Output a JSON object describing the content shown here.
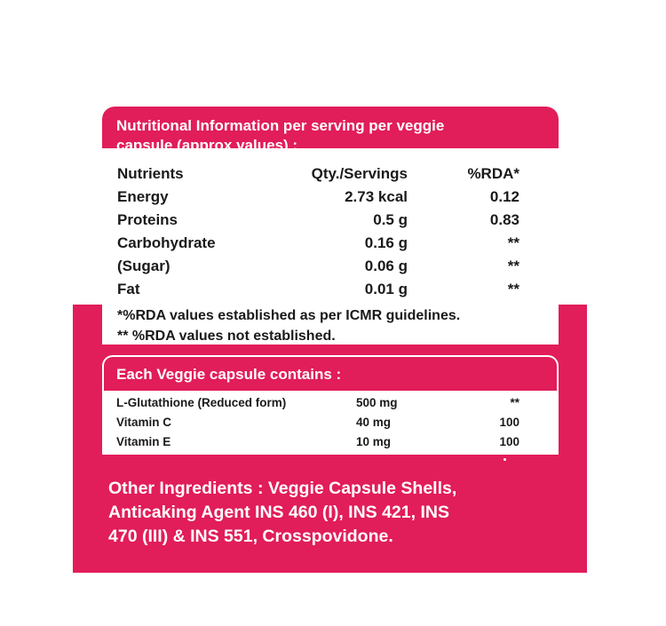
{
  "header": {
    "line1": "Nutritional Information per serving per veggie",
    "line2": "capsule (approx values) :"
  },
  "columns": {
    "name": "Nutrients",
    "qty": "Qty./Servings",
    "rda": "%RDA*"
  },
  "nutrients": [
    {
      "name": "Energy",
      "qty": "2.73 kcal",
      "rda": "0.12"
    },
    {
      "name": "Proteins",
      "qty": "0.5 g",
      "rda": "0.83"
    },
    {
      "name": "Carbohydrate",
      "qty": "0.16 g",
      "rda": "**"
    },
    {
      "name": "(Sugar)",
      "qty": "0.06 g",
      "rda": "**"
    },
    {
      "name": "Fat",
      "qty": "0.01 g",
      "rda": "**"
    }
  ],
  "notes": {
    "n1": "*%RDA values established as per ICMR guidelines.",
    "n2": "** %RDA values not established."
  },
  "capsule": {
    "title": "Each Veggie capsule contains :",
    "rows": [
      {
        "name": "L-Glutathione (Reduced form)",
        "qty": "500 mg",
        "rda": "**"
      },
      {
        "name": "Vitamin C",
        "qty": "40 mg",
        "rda": "100"
      },
      {
        "name": "Vitamin E",
        "qty": "10 mg",
        "rda": "100"
      }
    ]
  },
  "other_ingredients": {
    "line1": "Other Ingredients : Veggie Capsule Shells,",
    "line2": "Anticaking Agent INS 460 (I), INS 421, INS",
    "line3": "470 (III) & INS 551, Crosspovidone."
  },
  "colors": {
    "accent": "#e11d5a"
  }
}
